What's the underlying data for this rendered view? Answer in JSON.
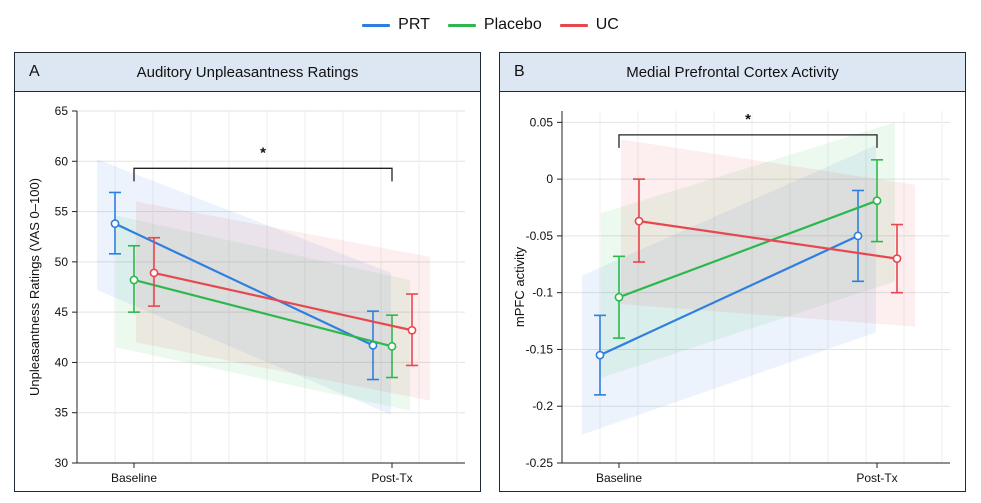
{
  "legend": [
    {
      "name": "PRT",
      "color": "#2f7fde"
    },
    {
      "name": "Placebo",
      "color": "#2db84d"
    },
    {
      "name": "UC",
      "color": "#e8474f"
    }
  ],
  "chart_data": [
    {
      "type": "line",
      "panel_label": "A",
      "title": "Auditory Unpleasantness Ratings",
      "xlabel": "",
      "ylabel": "Unpleasantness Ratings (VAS 0–100)",
      "categories": [
        "Baseline",
        "Post-Tx"
      ],
      "ylim": [
        30,
        65
      ],
      "yticks": [
        30,
        35,
        40,
        45,
        50,
        55,
        60,
        65
      ],
      "ytick_labels": [
        "30",
        "35",
        "40",
        "45",
        "50",
        "55",
        "60",
        "65"
      ],
      "grid": true,
      "series": [
        {
          "name": "PRT",
          "values": [
            53.8,
            41.7
          ],
          "err_low": [
            50.8,
            38.3
          ],
          "err_high": [
            56.9,
            45.1
          ],
          "band_low": [
            47.2,
            34.8
          ],
          "band_high": [
            60.2,
            48.9
          ]
        },
        {
          "name": "Placebo",
          "values": [
            48.2,
            41.6
          ],
          "err_low": [
            45.0,
            38.5
          ],
          "err_high": [
            51.6,
            44.7
          ],
          "band_low": [
            41.5,
            35.2
          ],
          "band_high": [
            54.6,
            48.2
          ]
        },
        {
          "name": "UC",
          "values": [
            48.9,
            43.2
          ],
          "err_low": [
            45.6,
            39.7
          ],
          "err_high": [
            52.4,
            46.8
          ],
          "band_low": [
            42.0,
            36.2
          ],
          "band_high": [
            56.0,
            50.5
          ]
        }
      ],
      "significance": {
        "from": "Baseline",
        "to": "Post-Tx",
        "y": 59.3,
        "label": "*"
      }
    },
    {
      "type": "line",
      "panel_label": "B",
      "title": "Medial Prefrontal Cortex Activity",
      "xlabel": "",
      "ylabel": "mPFC activity",
      "categories": [
        "Baseline",
        "Post-Tx"
      ],
      "ylim": [
        -0.25,
        0.06
      ],
      "yticks": [
        -0.25,
        -0.2,
        -0.15,
        -0.1,
        -0.05,
        0,
        0.05
      ],
      "ytick_labels": [
        "-0.25",
        "-0.2",
        "-0.15",
        "-0.1",
        "-0.05",
        "0",
        "0.05"
      ],
      "grid": true,
      "series": [
        {
          "name": "PRT",
          "values": [
            -0.155,
            -0.05
          ],
          "err_low": [
            -0.19,
            -0.09
          ],
          "err_high": [
            -0.12,
            -0.01
          ],
          "band_low": [
            -0.225,
            -0.135
          ],
          "band_high": [
            -0.085,
            0.03
          ]
        },
        {
          "name": "Placebo",
          "values": [
            -0.104,
            -0.019
          ],
          "err_low": [
            -0.14,
            -0.055
          ],
          "err_high": [
            -0.068,
            0.017
          ],
          "band_low": [
            -0.175,
            -0.09
          ],
          "band_high": [
            -0.03,
            0.05
          ]
        },
        {
          "name": "UC",
          "values": [
            -0.037,
            -0.07
          ],
          "err_low": [
            -0.073,
            -0.1
          ],
          "err_high": [
            0.0,
            -0.04
          ],
          "band_low": [
            -0.11,
            -0.13
          ],
          "band_high": [
            0.035,
            -0.005
          ]
        }
      ],
      "significance": {
        "from": "Baseline",
        "to": "Post-Tx",
        "y": 0.039,
        "label": "*"
      }
    }
  ]
}
